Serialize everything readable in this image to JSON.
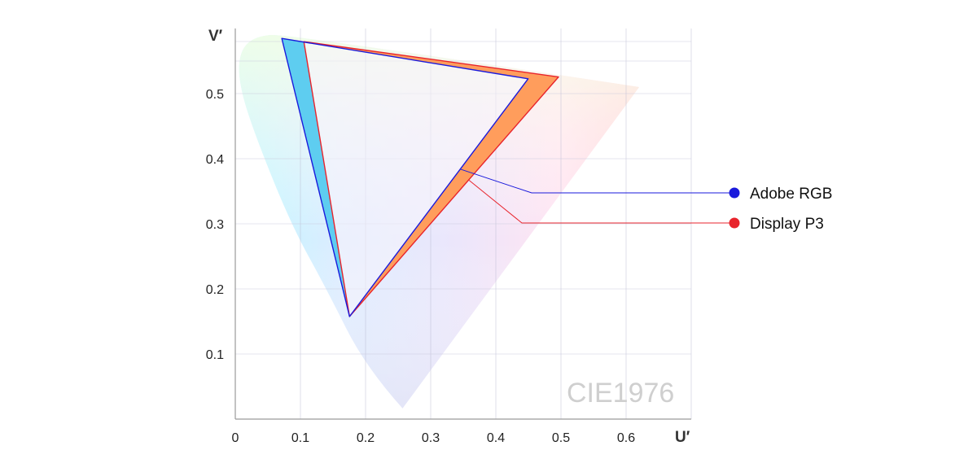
{
  "chart_data": {
    "type": "scatter",
    "watermark": "CIE1976",
    "xlabel": "U′",
    "ylabel": "V′",
    "xlim": [
      0,
      0.7
    ],
    "ylim": [
      0,
      0.6
    ],
    "x_ticks": [
      0,
      0.1,
      0.2,
      0.3,
      0.4,
      0.5,
      0.6
    ],
    "x_tick_labels": [
      "0",
      "0.1",
      "0.2",
      "0.3",
      "0.4",
      "0.5",
      "0.6"
    ],
    "y_ticks": [
      0.1,
      0.2,
      0.3,
      0.4,
      0.5
    ],
    "y_tick_labels": [
      "0.1",
      "0.2",
      "0.3",
      "0.4",
      "0.5"
    ],
    "grid": true,
    "legend_position": "right",
    "series": [
      {
        "name": "Adobe RGB",
        "color": "#1a1adc",
        "fill_color": "#5ecdf0",
        "points": [
          [
            0.0714,
            0.5847
          ],
          [
            0.4496,
            0.5227
          ],
          [
            0.1754,
            0.1576
          ]
        ]
      },
      {
        "name": "Display P3",
        "color": "#e8242c",
        "fill_color": "#ff9d5c",
        "points": [
          [
            0.1053,
            0.5798
          ],
          [
            0.4963,
            0.5256
          ],
          [
            0.1754,
            0.1576
          ]
        ]
      }
    ],
    "spectral_locus": [
      [
        0.2568,
        0.0165
      ],
      [
        0.2,
        0.08
      ],
      [
        0.14,
        0.2
      ],
      [
        0.085,
        0.3
      ],
      [
        0.025,
        0.45
      ],
      [
        0.005,
        0.52
      ],
      [
        0.007,
        0.565
      ],
      [
        0.03,
        0.588
      ],
      [
        0.08,
        0.592
      ],
      [
        0.62,
        0.51
      ]
    ]
  }
}
